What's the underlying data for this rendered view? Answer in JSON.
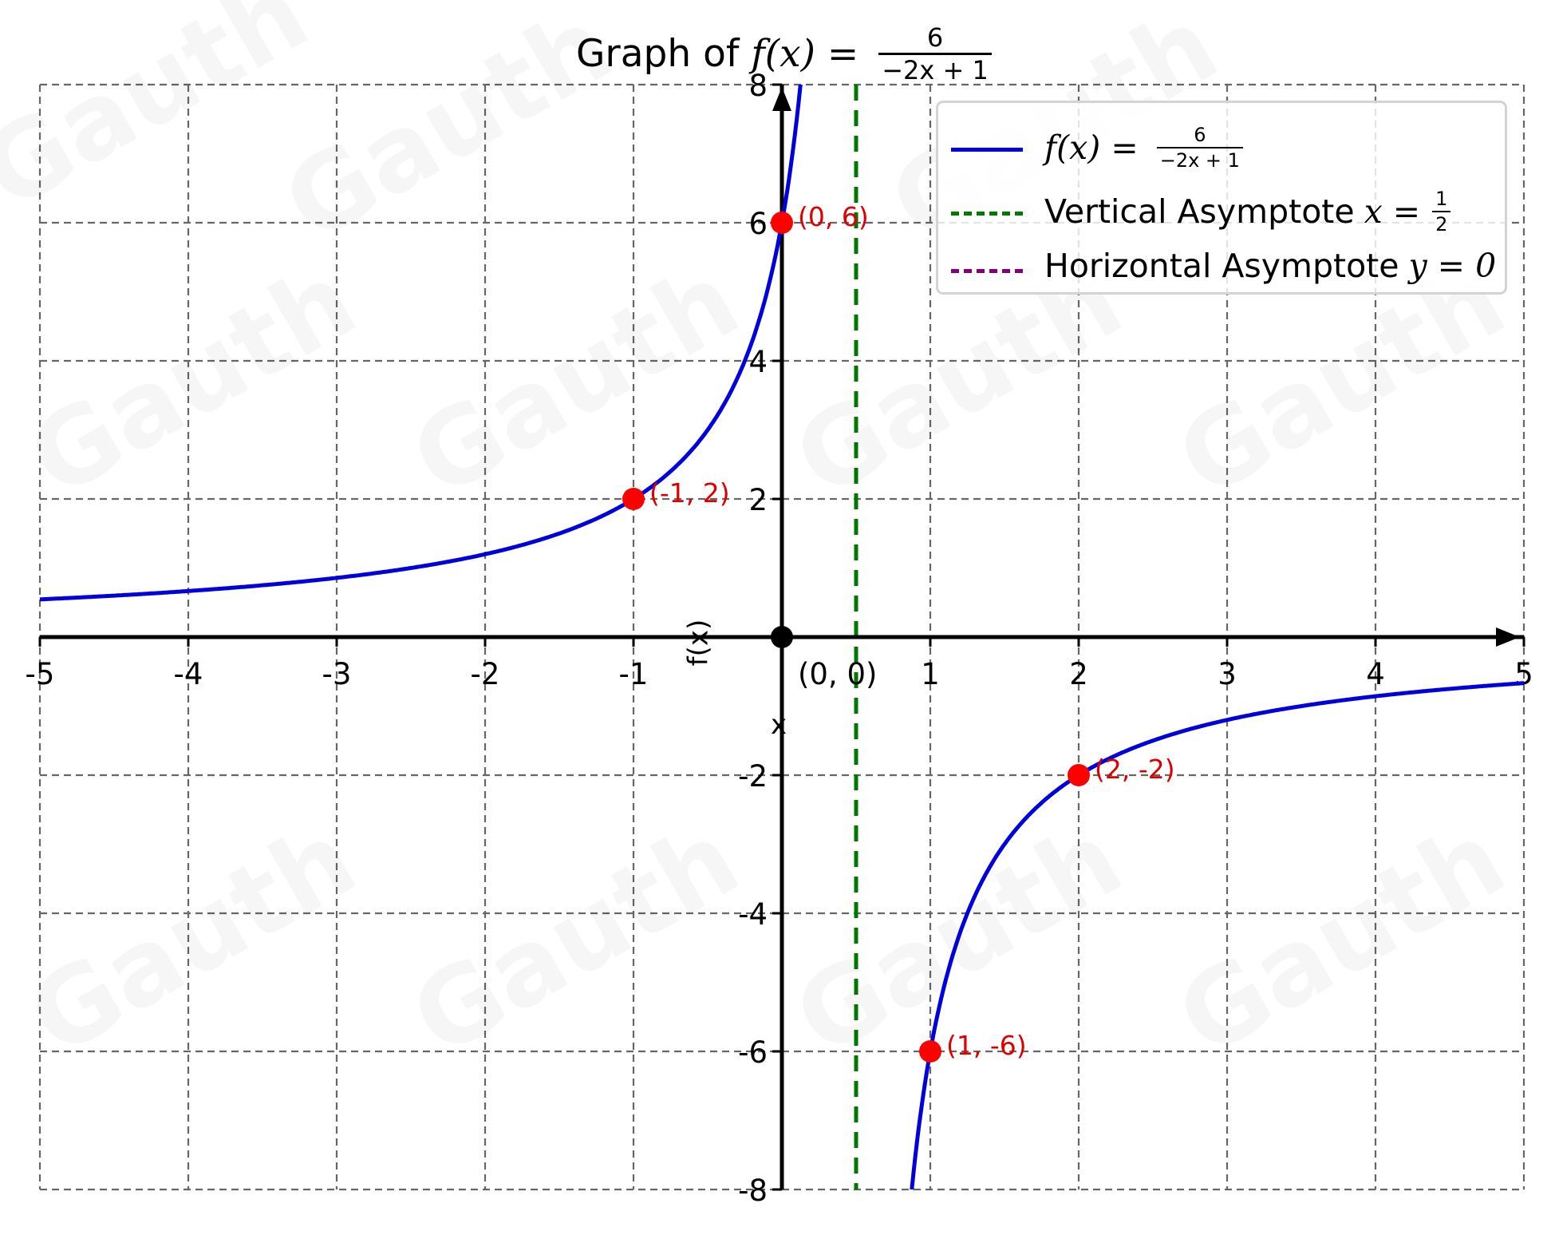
{
  "chart_data": {
    "type": "line",
    "title": "Graph of f(x) = 6 / (-2x + 1)",
    "title_parts": {
      "prefix": "Graph of ",
      "func": "f(x) = ",
      "numerator": "6",
      "denominator": "−2x + 1"
    },
    "xlabel": "x",
    "ylabel": "f(x)",
    "xlim": [
      -5,
      5
    ],
    "ylim": [
      -8,
      8
    ],
    "grid": true,
    "grid_style": "dashed",
    "x_ticks": [
      -5,
      -4,
      -3,
      -2,
      -1,
      0,
      1,
      2,
      3,
      4,
      5
    ],
    "x_tick_labels": [
      "-5",
      "-4",
      "-3",
      "-2",
      "-1",
      "",
      "1",
      "2",
      "3",
      "4",
      "5"
    ],
    "y_ticks": [
      -8,
      -6,
      -4,
      -2,
      0,
      2,
      4,
      6,
      8
    ],
    "y_tick_labels": [
      "-8",
      "-6",
      "-4",
      "-2",
      "",
      "2",
      "4",
      "6",
      "8"
    ],
    "series": [
      {
        "name": "f(x) = 6 / (-2x + 1)",
        "color": "#0000dd",
        "style": "solid",
        "function": "6/(-2*x+1)",
        "branches": [
          {
            "x_range": [
              -5,
              0.125
            ],
            "x": [
              -5,
              -4,
              -3,
              -2,
              -1,
              -0.5,
              0,
              0.125
            ],
            "y": [
              0.545,
              0.667,
              0.857,
              1.2,
              2,
              3,
              6,
              8
            ]
          },
          {
            "x_range": [
              0.875,
              5
            ],
            "x": [
              0.875,
              1,
              1.5,
              2,
              3,
              4,
              5
            ],
            "y": [
              -8,
              -6,
              -3,
              -2,
              -1.2,
              -0.857,
              -0.667
            ]
          }
        ]
      },
      {
        "name": "Vertical Asymptote x = 1/2",
        "color": "#007700",
        "style": "dashed",
        "x": 0.5
      },
      {
        "name": "Horizontal Asymptote y = 0",
        "color": "#800080",
        "style": "dashed",
        "y": 0
      }
    ],
    "points": [
      {
        "x": 0,
        "y": 6,
        "label": "(0, 6)",
        "color": "#ff0000"
      },
      {
        "x": -1,
        "y": 2,
        "label": "(-1, 2)",
        "color": "#ff0000"
      },
      {
        "x": 2,
        "y": -2,
        "label": "(2, -2)",
        "color": "#ff0000"
      },
      {
        "x": 1,
        "y": -6,
        "label": "(1, -6)",
        "color": "#ff0000"
      },
      {
        "x": 0,
        "y": 0,
        "label": "(0, 0)",
        "color": "#000000"
      }
    ],
    "legend": {
      "position": "upper right",
      "entries": [
        {
          "prefix": "",
          "math": "f(x) = ",
          "numerator": "6",
          "denominator": "−2x + 1",
          "color": "#0000dd",
          "style": "solid"
        },
        {
          "prefix": "Vertical Asymptote",
          "math": "x = ",
          "numerator": "1",
          "denominator": "2",
          "color": "#007700",
          "style": "dashed"
        },
        {
          "prefix": "Horizontal Asymptote",
          "math": "y = 0",
          "numerator": "",
          "denominator": "",
          "color": "#800080",
          "style": "dashed"
        }
      ]
    }
  },
  "colors": {
    "curve": "#0000dd",
    "vertical_asymptote": "#007700",
    "horizontal_asymptote": "#800080",
    "points": "#ff0000",
    "point_labels": "#dd0000",
    "grid": "#666666",
    "axes": "#000000"
  },
  "watermark": "Gauth"
}
